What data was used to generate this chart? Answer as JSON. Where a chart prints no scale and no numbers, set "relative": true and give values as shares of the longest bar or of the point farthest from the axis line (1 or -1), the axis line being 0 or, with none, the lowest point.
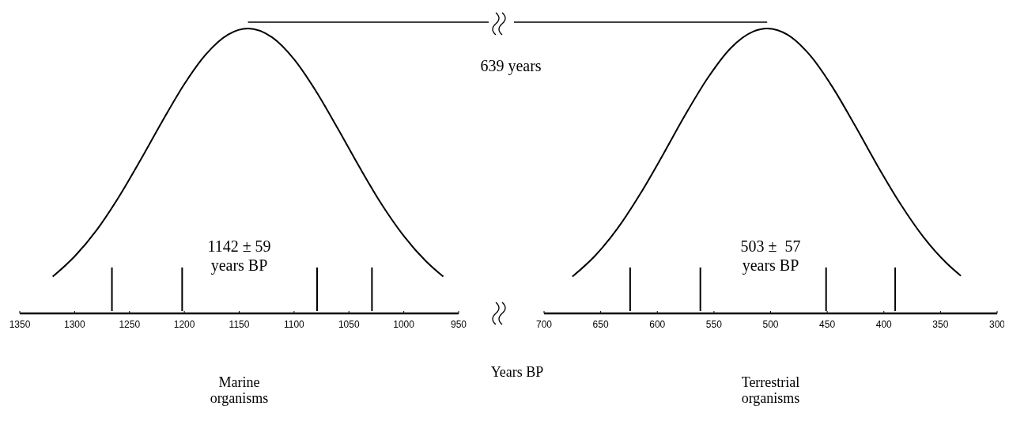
{
  "chart_data": [
    {
      "type": "line",
      "relative": true,
      "title": "Marine\norganisms",
      "xlabel": "Years BP",
      "annotations": [
        "1142 ± 59\nyears BP",
        "639 years"
      ],
      "xlim": [
        1350,
        950
      ],
      "xticks": [
        1350,
        1300,
        1250,
        1200,
        1150,
        1100,
        1050,
        1000,
        950
      ],
      "x": [
        1320,
        1300,
        1280,
        1260,
        1240,
        1220,
        1200,
        1180,
        1160,
        1142,
        1120,
        1100,
        1080,
        1060,
        1040,
        1020,
        1000,
        980,
        964
      ],
      "series": [
        {
          "color": "#000000",
          "values": [
            0.129,
            0.2,
            0.292,
            0.407,
            0.538,
            0.675,
            0.805,
            0.911,
            0.979,
            1,
            0.969,
            0.892,
            0.78,
            0.648,
            0.511,
            0.382,
            0.272,
            0.184,
            0.129
          ]
        }
      ],
      "ref_lines": [
        {
          "axis": "x",
          "value": 1266
        },
        {
          "axis": "x",
          "value": 1202
        },
        {
          "axis": "x",
          "value": 1079
        },
        {
          "axis": "x",
          "value": 1029
        }
      ]
    },
    {
      "type": "line",
      "relative": true,
      "title": "Terrestrial\norganisms",
      "annotations": [
        "503 ±  57\nyears BP"
      ],
      "xlim": [
        700,
        300
      ],
      "xticks": [
        700,
        650,
        600,
        550,
        500,
        450,
        400,
        350,
        300
      ],
      "x": [
        675,
        655,
        635,
        615,
        595,
        575,
        555,
        535,
        515,
        503,
        485,
        465,
        445,
        425,
        405,
        385,
        365,
        345,
        332
      ],
      "series": [
        {
          "color": "#000000",
          "values": [
            0.129,
            0.202,
            0.299,
            0.42,
            0.557,
            0.699,
            0.829,
            0.932,
            0.99,
            1,
            0.978,
            0.905,
            0.792,
            0.656,
            0.514,
            0.382,
            0.268,
            0.178,
            0.132
          ]
        }
      ],
      "ref_lines": [
        {
          "axis": "x",
          "value": 624
        },
        {
          "axis": "x",
          "value": 562
        },
        {
          "axis": "x",
          "value": 451
        },
        {
          "axis": "x",
          "value": 390
        }
      ]
    }
  ]
}
